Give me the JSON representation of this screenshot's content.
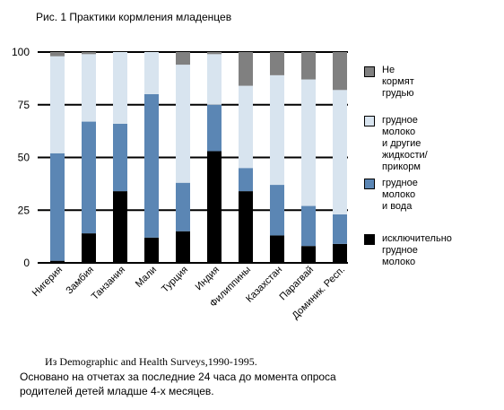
{
  "chart_data": {
    "type": "bar",
    "stacked": true,
    "title": "Рис. 1 Практики кормления младенцев",
    "categories": [
      "Нигерия",
      "Замбия",
      "Танзания",
      "Мали",
      "Турция",
      "Индия",
      "Филиппины",
      "Казахстан",
      "Парагвай",
      "Доминик. Респ."
    ],
    "series": [
      {
        "name": "исключительно\nгрудное молоко",
        "color": "#000000",
        "values": [
          1,
          14,
          34,
          12,
          15,
          53,
          34,
          13,
          8,
          9
        ]
      },
      {
        "name": "грудное молоко\nи вода",
        "color": "#5b86b4",
        "values": [
          51,
          53,
          32,
          68,
          23,
          22,
          11,
          24,
          19,
          14
        ]
      },
      {
        "name": "грудное молоко\nи другие\nжидкости/прикорм",
        "color": "#d8e4ef",
        "values": [
          46,
          32,
          34,
          20,
          56,
          24,
          39,
          52,
          60,
          59
        ]
      },
      {
        "name": "Не кормят грудью",
        "color": "#808080",
        "values": [
          2,
          1,
          0,
          0,
          6,
          1,
          16,
          11,
          13,
          18
        ]
      }
    ],
    "yticks": [
      0,
      25,
      50,
      75,
      100
    ],
    "ylim": [
      0,
      100
    ],
    "grid": true,
    "legend_position": "right"
  },
  "notes": {
    "source": "Из Demographic and Health Surveys,1990-1995.",
    "description": "Основано на отчетах за последние 24 часа до момента опроса\nродителей детей младше 4-х месяцев."
  }
}
